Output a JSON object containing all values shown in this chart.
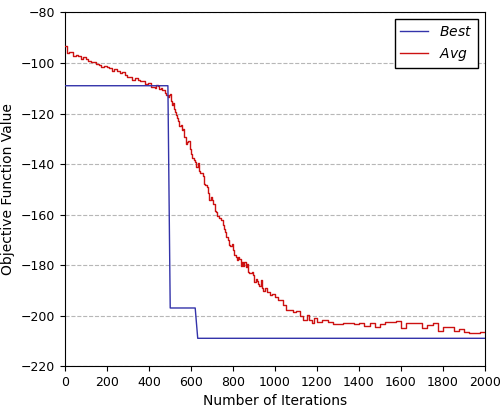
{
  "xlabel": "Number of Iterations",
  "ylabel": "Objective Function Value",
  "xlim": [
    0,
    2000
  ],
  "ylim": [
    -220,
    -80
  ],
  "yticks": [
    -220,
    -200,
    -180,
    -160,
    -140,
    -120,
    -100,
    -80
  ],
  "xticks": [
    0,
    200,
    400,
    600,
    800,
    1000,
    1200,
    1400,
    1600,
    1800,
    2000
  ],
  "best_color": "#3333aa",
  "avg_color": "#cc1111",
  "grid_color": "#b0b0b0",
  "background_color": "#ffffff",
  "linewidth": 1.0
}
